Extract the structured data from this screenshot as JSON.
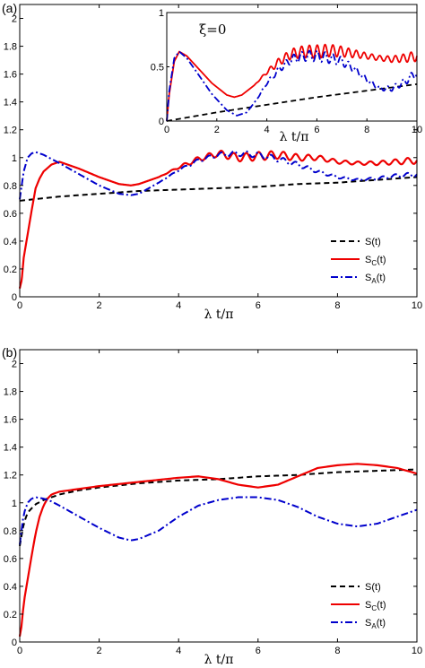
{
  "chart_data": [
    {
      "id": "a",
      "type": "line",
      "panel_label": "(a)",
      "xlabel": "λ t/π",
      "ylabel": "",
      "xlim": [
        0,
        10
      ],
      "ylim": [
        0,
        2.1
      ],
      "xticks": [
        "0",
        "2",
        "4",
        "6",
        "8",
        "10"
      ],
      "yticks": [
        "0",
        "0.2",
        "0.4",
        "0.6",
        "0.8",
        "1",
        "1.2",
        "1.4",
        "1.6",
        "1.8",
        "2"
      ],
      "legend_position": "lower-right",
      "legend": [
        {
          "label": "S(t)",
          "base": "S",
          "sub": "",
          "tail": "(t)",
          "color": "#000000",
          "dash": "6,4"
        },
        {
          "label": "S_C(t)",
          "base": "S",
          "sub": "C",
          "tail": "(t)",
          "color": "#ee0000",
          "dash": ""
        },
        {
          "label": "S_A(t)",
          "base": "S",
          "sub": "A",
          "tail": "(t)",
          "color": "#0000cc",
          "dash": "8,3,2,3"
        }
      ],
      "series": [
        {
          "name": "S(t)",
          "x": [
            0,
            1,
            2,
            3,
            4,
            5,
            6,
            7,
            8,
            9,
            10
          ],
          "y": [
            0.69,
            0.72,
            0.74,
            0.76,
            0.77,
            0.78,
            0.79,
            0.81,
            0.82,
            0.84,
            0.86
          ]
        },
        {
          "name": "S_C(t)",
          "x": [
            0,
            0.05,
            0.1,
            0.2,
            0.3,
            0.4,
            0.5,
            0.6,
            0.8,
            1,
            1.5,
            2,
            2.5,
            2.8,
            3,
            3.5,
            4,
            4.5,
            5,
            5.5,
            6,
            6.5,
            7,
            7.5,
            8,
            8.5,
            9,
            9.5,
            10
          ],
          "y": [
            0.06,
            0.12,
            0.28,
            0.45,
            0.62,
            0.78,
            0.85,
            0.9,
            0.95,
            0.97,
            0.92,
            0.86,
            0.81,
            0.8,
            0.81,
            0.86,
            0.93,
            0.99,
            1.03,
            1.0,
            1.01,
            1.02,
            1.0,
            1.0,
            0.97,
            0.96,
            0.96,
            0.97,
            0.98
          ],
          "oscillation_amplitude": 0.03
        },
        {
          "name": "S_A(t)",
          "x": [
            0,
            0.1,
            0.2,
            0.3,
            0.4,
            0.6,
            0.8,
            1,
            1.5,
            2,
            2.5,
            2.8,
            3,
            3.5,
            4,
            4.5,
            5,
            5.5,
            6,
            6.5,
            7,
            7.5,
            8,
            8.5,
            9,
            9.5,
            10
          ],
          "y": [
            0.7,
            0.9,
            1.0,
            1.03,
            1.04,
            1.02,
            0.99,
            0.96,
            0.88,
            0.8,
            0.74,
            0.73,
            0.74,
            0.82,
            0.91,
            0.98,
            1.02,
            1.03,
            1.02,
            0.99,
            0.95,
            0.9,
            0.86,
            0.84,
            0.85,
            0.87,
            0.88
          ],
          "oscillation_amplitude": 0.02
        }
      ],
      "inset": {
        "annotation": "ξ=0",
        "xlim": [
          0,
          10
        ],
        "ylim": [
          0,
          1
        ],
        "xticks": [
          "0",
          "2",
          "4",
          "6",
          "8",
          "10"
        ],
        "yticks": [
          "0",
          "0.5",
          "1"
        ],
        "xlabel": "λ t/π",
        "series": [
          {
            "name": "S(t)",
            "x": [
              0,
              2,
              4,
              6,
              8,
              10
            ],
            "y": [
              0.0,
              0.08,
              0.15,
              0.22,
              0.28,
              0.34
            ]
          },
          {
            "name": "S_C(t)",
            "x": [
              0,
              0.1,
              0.3,
              0.5,
              0.8,
              1.2,
              1.8,
              2.4,
              2.7,
              3.0,
              3.5,
              4.0,
              4.5,
              5.0,
              5.5,
              6.0,
              6.5,
              7.0,
              7.5,
              8.0,
              8.5,
              9.0,
              9.5,
              10
            ],
            "y": [
              0.0,
              0.25,
              0.55,
              0.64,
              0.6,
              0.5,
              0.35,
              0.24,
              0.22,
              0.24,
              0.33,
              0.45,
              0.55,
              0.62,
              0.64,
              0.64,
              0.65,
              0.64,
              0.62,
              0.6,
              0.58,
              0.57,
              0.58,
              0.6
            ],
            "oscillation_amplitude": 0.06
          },
          {
            "name": "S_A(t)",
            "x": [
              0,
              0.1,
              0.3,
              0.5,
              0.8,
              1.2,
              1.8,
              2.4,
              2.8,
              3.2,
              3.6,
              4.0,
              4.5,
              5.0,
              5.5,
              6.0,
              6.5,
              7.0,
              7.5,
              8.0,
              8.5,
              9.0,
              9.5,
              10
            ],
            "y": [
              0.0,
              0.28,
              0.58,
              0.64,
              0.58,
              0.45,
              0.25,
              0.1,
              0.05,
              0.08,
              0.2,
              0.35,
              0.48,
              0.57,
              0.6,
              0.6,
              0.58,
              0.55,
              0.48,
              0.38,
              0.3,
              0.3,
              0.36,
              0.45
            ],
            "oscillation_amplitude": 0.05
          }
        ]
      }
    },
    {
      "id": "b",
      "type": "line",
      "panel_label": "(b)",
      "xlabel": "λ t/π",
      "ylabel": "",
      "xlim": [
        0,
        10
      ],
      "ylim": [
        0,
        2.1
      ],
      "xticks": [
        "0",
        "2",
        "4",
        "6",
        "8",
        "10"
      ],
      "yticks": [
        "0",
        "0.2",
        "0.4",
        "0.6",
        "0.8",
        "1",
        "1.2",
        "1.4",
        "1.6",
        "1.8",
        "2"
      ],
      "legend_position": "lower-right",
      "legend": [
        {
          "label": "S(t)",
          "base": "S",
          "sub": "",
          "tail": "(t)",
          "color": "#000000",
          "dash": "6,4"
        },
        {
          "label": "S_C(t)",
          "base": "S",
          "sub": "C",
          "tail": "(t)",
          "color": "#ee0000",
          "dash": ""
        },
        {
          "label": "S_A(t)",
          "base": "S",
          "sub": "A",
          "tail": "(t)",
          "color": "#0000cc",
          "dash": "8,3,2,3"
        }
      ],
      "series": [
        {
          "name": "S(t)",
          "x": [
            0,
            0.1,
            0.2,
            0.4,
            0.6,
            1,
            1.5,
            2,
            3,
            4,
            5,
            6,
            7,
            8,
            9,
            10
          ],
          "y": [
            0.69,
            0.85,
            0.93,
            0.99,
            1.02,
            1.06,
            1.09,
            1.11,
            1.14,
            1.16,
            1.17,
            1.19,
            1.2,
            1.22,
            1.23,
            1.24
          ]
        },
        {
          "name": "S_C(t)",
          "x": [
            0,
            0.05,
            0.1,
            0.2,
            0.3,
            0.4,
            0.5,
            0.6,
            0.7,
            0.8,
            1,
            1.5,
            2,
            3,
            4,
            4.5,
            5,
            5.5,
            6,
            6.5,
            7,
            7.5,
            8,
            8.5,
            9,
            9.5,
            10
          ],
          "y": [
            0.04,
            0.12,
            0.28,
            0.45,
            0.62,
            0.78,
            0.9,
            0.98,
            1.03,
            1.06,
            1.08,
            1.1,
            1.12,
            1.15,
            1.18,
            1.19,
            1.17,
            1.13,
            1.11,
            1.13,
            1.19,
            1.25,
            1.27,
            1.28,
            1.27,
            1.25,
            1.21
          ]
        },
        {
          "name": "S_A(t)",
          "x": [
            0,
            0.1,
            0.2,
            0.3,
            0.4,
            0.6,
            0.8,
            1,
            1.5,
            2,
            2.5,
            2.8,
            3,
            3.5,
            4,
            4.5,
            5,
            5.5,
            6,
            6.5,
            7,
            7.5,
            8,
            8.5,
            9,
            9.5,
            10
          ],
          "y": [
            0.7,
            0.92,
            1.0,
            1.03,
            1.04,
            1.03,
            1.01,
            0.98,
            0.9,
            0.82,
            0.75,
            0.73,
            0.74,
            0.8,
            0.9,
            0.98,
            1.02,
            1.04,
            1.04,
            1.02,
            0.97,
            0.9,
            0.85,
            0.83,
            0.85,
            0.9,
            0.95
          ]
        }
      ]
    }
  ]
}
